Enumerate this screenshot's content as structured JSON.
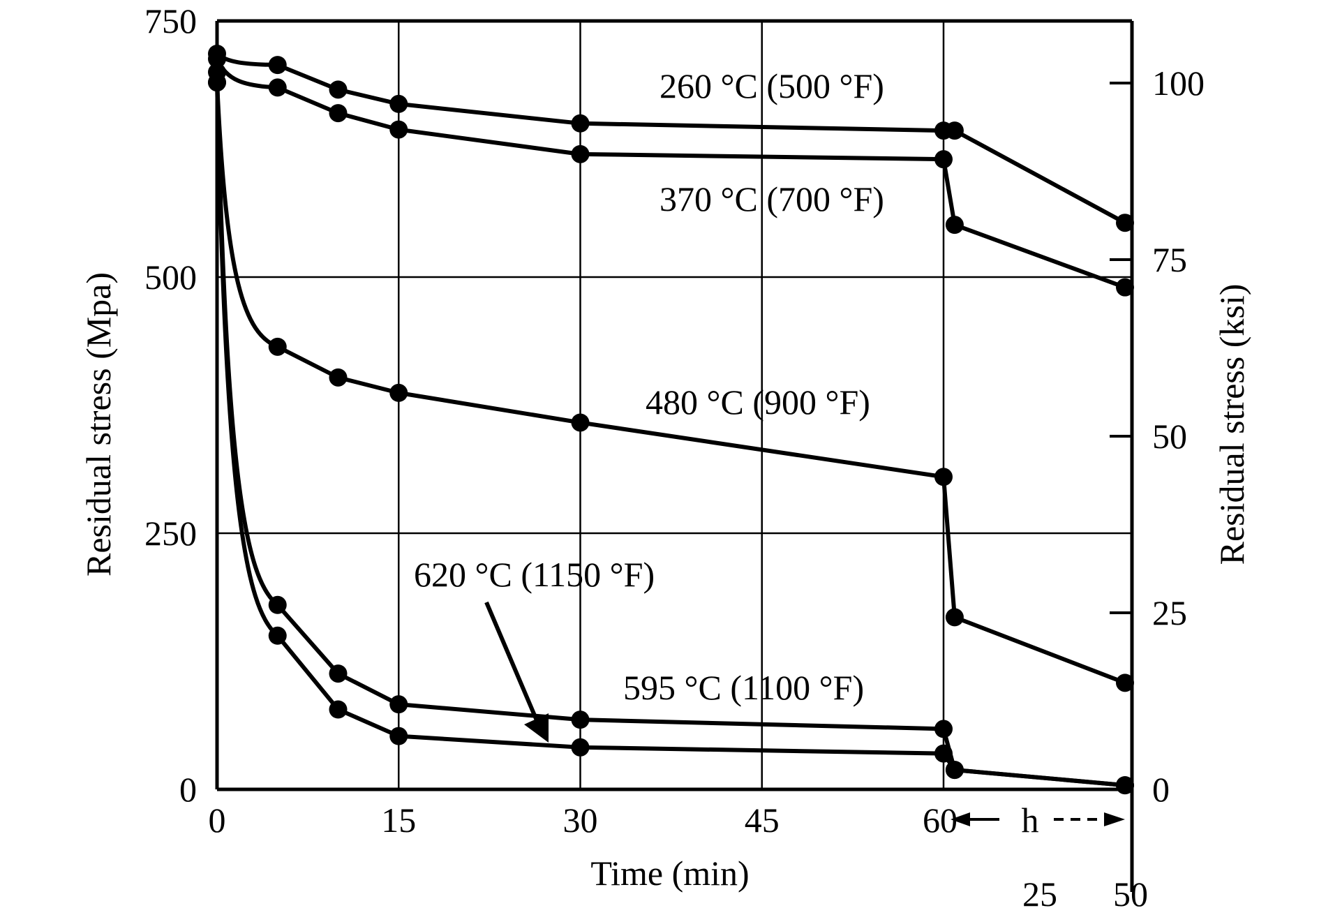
{
  "chart_data": {
    "type": "line",
    "xlabel": "Time (min)",
    "ylabel": "Residual stress (Mpa)",
    "y2label": "Residual stress (ksi)",
    "ylim": [
      0,
      750
    ],
    "y2lim": [
      0,
      108.8
    ],
    "x_ticks": [
      "0",
      "15",
      "30",
      "45",
      "60"
    ],
    "x_ticks_min": [
      0,
      15,
      30,
      45,
      60
    ],
    "y_ticks": [
      "0",
      "250",
      "500",
      "750"
    ],
    "y_ticks_values": [
      0,
      250,
      500,
      750
    ],
    "y2_ticks": [
      "0",
      "25",
      "50",
      "75",
      "100"
    ],
    "y2_ticks_values": [
      0,
      25,
      50,
      75,
      100
    ],
    "hours_segment": {
      "label": "h",
      "ticks": [
        "25",
        "50"
      ],
      "ticks_h": [
        25,
        50
      ]
    },
    "grid": true,
    "series": [
      {
        "name": "260 °C (500 °F)",
        "points": [
          {
            "t": "0 min",
            "y": 718
          },
          {
            "t": "5 min",
            "y": 707
          },
          {
            "t": "10 min",
            "y": 683
          },
          {
            "t": "15 min",
            "y": 669
          },
          {
            "t": "30 min",
            "y": 650
          },
          {
            "t": "60 min",
            "y": 643
          },
          {
            "t": "4 h",
            "y": 643
          },
          {
            "t": "50 h",
            "y": 553
          }
        ]
      },
      {
        "name": "370 °C (700 °F)",
        "points": [
          {
            "t": "0 min",
            "y": 713
          },
          {
            "t": "5 min",
            "y": 685
          },
          {
            "t": "10 min",
            "y": 660
          },
          {
            "t": "15 min",
            "y": 644
          },
          {
            "t": "30 min",
            "y": 620
          },
          {
            "t": "60 min",
            "y": 615
          },
          {
            "t": "4 h",
            "y": 551
          },
          {
            "t": "50 h",
            "y": 490
          }
        ]
      },
      {
        "name": "480 °C (900 °F)",
        "points": [
          {
            "t": "0 min",
            "y": 690
          },
          {
            "t": "5 min",
            "y": 432
          },
          {
            "t": "10 min",
            "y": 402
          },
          {
            "t": "15 min",
            "y": 387
          },
          {
            "t": "30 min",
            "y": 358
          },
          {
            "t": "60 min",
            "y": 305
          },
          {
            "t": "4 h",
            "y": 168
          },
          {
            "t": "50 h",
            "y": 104
          }
        ]
      },
      {
        "name": "595 °C (1100 °F)",
        "points": [
          {
            "t": "0 min",
            "y": 700
          },
          {
            "t": "5 min",
            "y": 180
          },
          {
            "t": "10 min",
            "y": 113
          },
          {
            "t": "15 min",
            "y": 83
          },
          {
            "t": "30 min",
            "y": 68
          },
          {
            "t": "60 min",
            "y": 59
          },
          {
            "t": "4 h",
            "y": 19
          },
          {
            "t": "50 h",
            "y": 4
          }
        ]
      },
      {
        "name": "620 °C (1150 °F)",
        "points": [
          {
            "t": "0 min",
            "y": 690
          },
          {
            "t": "5 min",
            "y": 150
          },
          {
            "t": "10 min",
            "y": 78
          },
          {
            "t": "15 min",
            "y": 52
          },
          {
            "t": "30 min",
            "y": 41
          },
          {
            "t": "60 min",
            "y": 35
          },
          {
            "t": "4 h",
            "y": 19
          },
          {
            "t": "50 h",
            "y": 4
          }
        ]
      }
    ]
  }
}
